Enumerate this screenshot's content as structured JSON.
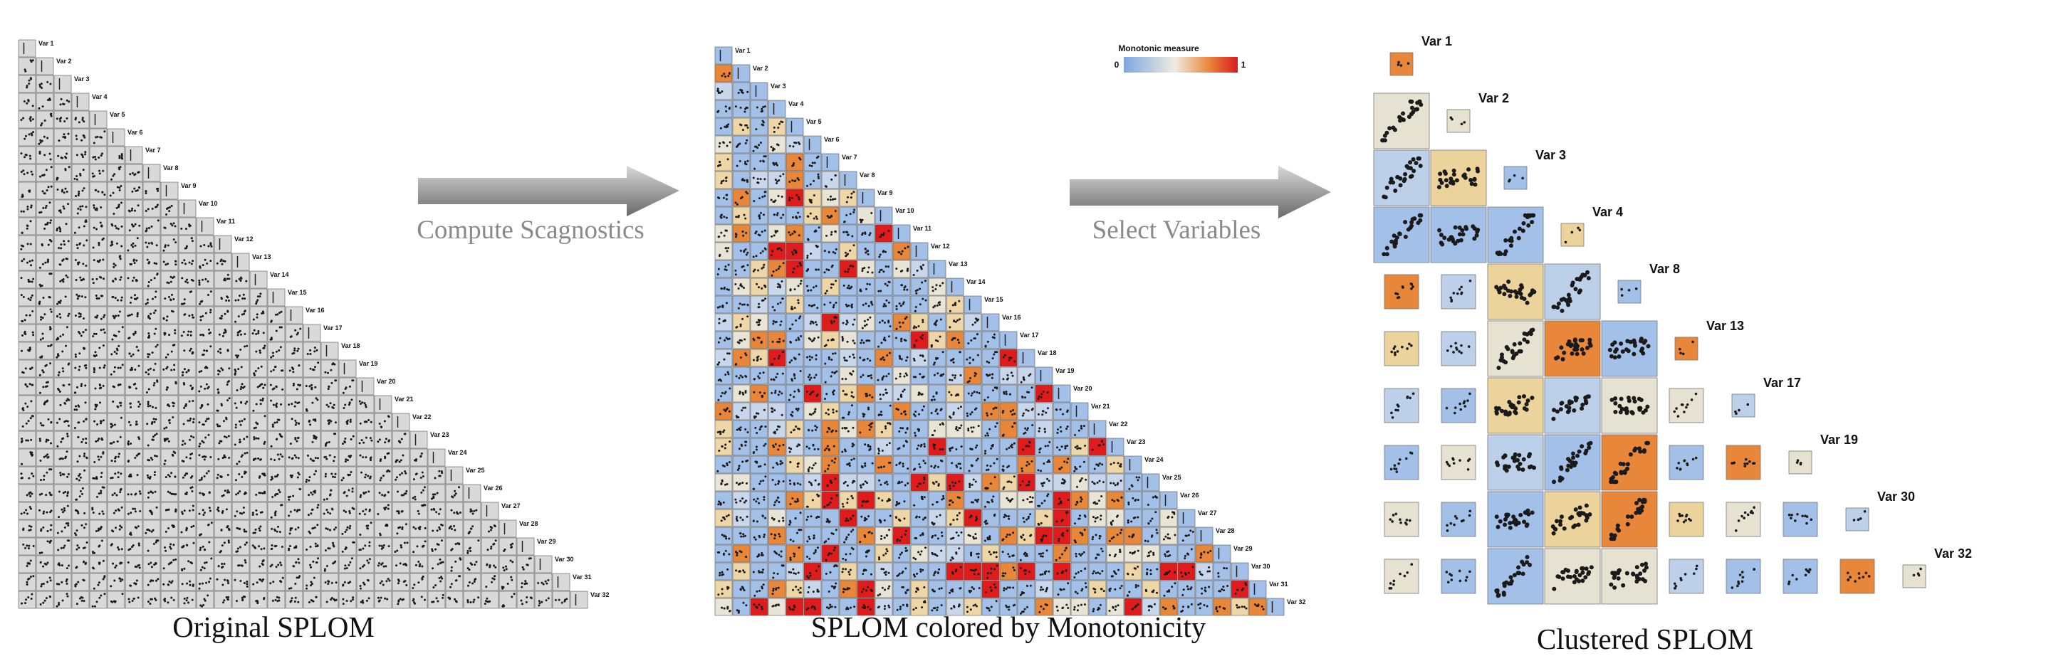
{
  "panels": {
    "original": {
      "caption": "Original SPLOM"
    },
    "colored": {
      "caption": "SPLOM colored by Monotonicity",
      "legend": {
        "title": "Monotonic measure",
        "min": 0,
        "max": 1
      }
    },
    "clustered": {
      "caption": "Clustered SPLOM",
      "labels": [
        "Var 1",
        "Var 2",
        "Var 3",
        "Var 4",
        "Var 8",
        "Var 13",
        "Var 17",
        "Var 19",
        "Var 30",
        "Var 32"
      ]
    }
  },
  "arrows": [
    "Compute Scagnostics",
    "Select Variables"
  ],
  "variables": [
    "Var 1",
    "Var 2",
    "Var 3",
    "Var 4",
    "Var 5",
    "Var 6",
    "Var 7",
    "Var 8",
    "Var 9",
    "Var 10",
    "Var 11",
    "Var 12",
    "Var 13",
    "Var 14",
    "Var 15",
    "Var 16",
    "Var 17",
    "Var 18",
    "Var 19",
    "Var 20",
    "Var 21",
    "Var 22",
    "Var 23",
    "Var 24",
    "Var 25",
    "Var 26",
    "Var 27",
    "Var 28",
    "Var 29",
    "Var 30",
    "Var 31",
    "Var 32"
  ]
}
